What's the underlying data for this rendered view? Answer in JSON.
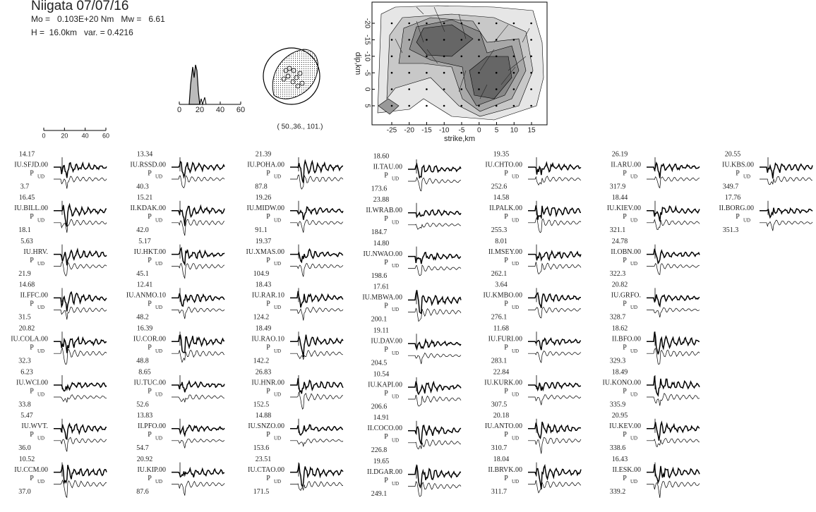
{
  "header": {
    "title": "Niigata 07/07/16",
    "moment_line": "Mo =   0.103E+20 Nm   Mw =   6.61",
    "depth_line": "H =  16.0km   var. = 0.4216"
  },
  "stf": {
    "ticks": [
      0,
      20,
      40,
      60
    ]
  },
  "time_scale": {
    "ticks": [
      0,
      20,
      40,
      60
    ]
  },
  "mechanism": {
    "label": "( 50.,36., 101.)"
  },
  "slip_map": {
    "xlabel": "strike,km",
    "ylabel": "dip,km",
    "xticks": [
      -25,
      -20,
      -15,
      -10,
      -5,
      0,
      5,
      10,
      15
    ],
    "yticks": [
      -20,
      -15,
      -10,
      -5,
      0,
      5
    ]
  },
  "stations": [
    [
      {
        "amp": "14.17",
        "name": "IU.SFJD.00",
        "phase": "P",
        "comp": "UD",
        "azimuth": "3.7"
      },
      {
        "amp": "16.45",
        "name": "IU.BILL.00",
        "phase": "P",
        "comp": "UD",
        "azimuth": "18.1"
      },
      {
        "amp": "5.63",
        "name": "IU.HRV.",
        "phase": "P",
        "comp": "UD",
        "azimuth": "21.9"
      },
      {
        "amp": "14.68",
        "name": "II.FFC.00",
        "phase": "P",
        "comp": "UD",
        "azimuth": "31.5"
      },
      {
        "amp": "20.82",
        "name": "IU.COLA.00",
        "phase": "P",
        "comp": "UD",
        "azimuth": "32.3"
      },
      {
        "amp": "6.23",
        "name": "IU.WCI.00",
        "phase": "P",
        "comp": "UD",
        "azimuth": "33.8"
      },
      {
        "amp": "5.47",
        "name": "IU.WVT.",
        "phase": "P",
        "comp": "UD",
        "azimuth": "36.0"
      },
      {
        "amp": "10.52",
        "name": "IU.CCM.00",
        "phase": "P",
        "comp": "UD",
        "azimuth": "37.0"
      }
    ],
    [
      {
        "amp": "13.34",
        "name": "IU.RSSD.00",
        "phase": "P",
        "comp": "UD",
        "azimuth": "40.3"
      },
      {
        "amp": "15.21",
        "name": "II.KDAK.00",
        "phase": "P",
        "comp": "UD",
        "azimuth": "42.0"
      },
      {
        "amp": "5.17",
        "name": "IU.HKT.00",
        "phase": "P",
        "comp": "UD",
        "azimuth": "45.1"
      },
      {
        "amp": "12.41",
        "name": "IU.ANMO.10",
        "phase": "P",
        "comp": "UD",
        "azimuth": "48.2"
      },
      {
        "amp": "16.39",
        "name": "IU.COR.00",
        "phase": "P",
        "comp": "UD",
        "azimuth": "48.8"
      },
      {
        "amp": "8.65",
        "name": "IU.TUC.00",
        "phase": "P",
        "comp": "UD",
        "azimuth": "52.6"
      },
      {
        "amp": "13.83",
        "name": "II.PFO.00",
        "phase": "P",
        "comp": "UD",
        "azimuth": "54.7"
      },
      {
        "amp": "20.92",
        "name": "IU.KIP.00",
        "phase": "P",
        "comp": "UD",
        "azimuth": "87.6"
      }
    ],
    [
      {
        "amp": "21.39",
        "name": "IU.POHA.00",
        "phase": "P",
        "comp": "UD",
        "azimuth": "87.8"
      },
      {
        "amp": "19.26",
        "name": "IU.MIDW.00",
        "phase": "P",
        "comp": "UD",
        "azimuth": "91.1"
      },
      {
        "amp": "19.37",
        "name": "IU.XMAS.00",
        "phase": "P",
        "comp": "UD",
        "azimuth": "104.9"
      },
      {
        "amp": "18.43",
        "name": "IU.RAR.10",
        "phase": "P",
        "comp": "UD",
        "azimuth": "124.2"
      },
      {
        "amp": "18.49",
        "name": "IU.RAO.10",
        "phase": "P",
        "comp": "UD",
        "azimuth": "142.2"
      },
      {
        "amp": "26.83",
        "name": "IU.HNR.00",
        "phase": "P",
        "comp": "UD",
        "azimuth": "152.5"
      },
      {
        "amp": "14.88",
        "name": "IU.SNZO.00",
        "phase": "P",
        "comp": "UD",
        "azimuth": "153.6"
      },
      {
        "amp": "23.51",
        "name": "IU.CTAO.00",
        "phase": "P",
        "comp": "UD",
        "azimuth": "171.5"
      }
    ],
    [
      {
        "amp": "18.60",
        "name": "II.TAU.00",
        "phase": "P",
        "comp": "UD",
        "azimuth": "173.6"
      },
      {
        "amp": "23.88",
        "name": "II.WRAB.00",
        "phase": "P",
        "comp": "UD",
        "azimuth": "184.7"
      },
      {
        "amp": "14.80",
        "name": "IU.NWAO.00",
        "phase": "P",
        "comp": "UD",
        "azimuth": "198.6"
      },
      {
        "amp": "17.61",
        "name": "IU.MBWA.00",
        "phase": "P",
        "comp": "UD",
        "azimuth": "200.1"
      },
      {
        "amp": "19.11",
        "name": "IU.DAV.00",
        "phase": "P",
        "comp": "UD",
        "azimuth": "204.5"
      },
      {
        "amp": "10.54",
        "name": "IU.KAPI.00",
        "phase": "P",
        "comp": "UD",
        "azimuth": "206.6"
      },
      {
        "amp": "14.91",
        "name": "II.COCO.00",
        "phase": "P",
        "comp": "UD",
        "azimuth": "226.8"
      },
      {
        "amp": "19.65",
        "name": "II.DGAR.00",
        "phase": "P",
        "comp": "UD",
        "azimuth": "249.1"
      }
    ],
    [
      {
        "amp": "19.35",
        "name": "IU.CHTO.00",
        "phase": "P",
        "comp": "UD",
        "azimuth": "252.6"
      },
      {
        "amp": "14.58",
        "name": "II.PALK.00",
        "phase": "P",
        "comp": "UD",
        "azimuth": "255.3"
      },
      {
        "amp": "8.01",
        "name": "II.MSEY.00",
        "phase": "P",
        "comp": "UD",
        "azimuth": "262.1"
      },
      {
        "amp": "3.64",
        "name": "IU.KMBO.00",
        "phase": "P",
        "comp": "UD",
        "azimuth": "276.1"
      },
      {
        "amp": "11.68",
        "name": "IU.FURI.00",
        "phase": "P",
        "comp": "UD",
        "azimuth": "283.1"
      },
      {
        "amp": "22.84",
        "name": "IU.KURK.00",
        "phase": "P",
        "comp": "UD",
        "azimuth": "307.5"
      },
      {
        "amp": "20.18",
        "name": "IU.ANTO.00",
        "phase": "P",
        "comp": "UD",
        "azimuth": "310.7"
      },
      {
        "amp": "18.04",
        "name": "II.BRVK.00",
        "phase": "P",
        "comp": "UD",
        "azimuth": "311.7"
      }
    ],
    [
      {
        "amp": "26.19",
        "name": "II.ARU.00",
        "phase": "P",
        "comp": "UD",
        "azimuth": "317.9"
      },
      {
        "amp": "18.44",
        "name": "IU.KIEV.00",
        "phase": "P",
        "comp": "UD",
        "azimuth": "321.1"
      },
      {
        "amp": "24.78",
        "name": "II.OBN.00",
        "phase": "P",
        "comp": "UD",
        "azimuth": "322.3"
      },
      {
        "amp": "20.82",
        "name": "IU.GRFO.",
        "phase": "P",
        "comp": "UD",
        "azimuth": "328.7"
      },
      {
        "amp": "18.62",
        "name": "II.BFO.00",
        "phase": "P",
        "comp": "UD",
        "azimuth": "329.3"
      },
      {
        "amp": "18.49",
        "name": "IU.KONO.00",
        "phase": "P",
        "comp": "UD",
        "azimuth": "335.9"
      },
      {
        "amp": "20.95",
        "name": "IU.KEV.00",
        "phase": "P",
        "comp": "UD",
        "azimuth": "338.6"
      },
      {
        "amp": "16.43",
        "name": "II.ESK.00",
        "phase": "P",
        "comp": "UD",
        "azimuth": "339.2"
      }
    ],
    [
      {
        "amp": "20.55",
        "name": "IU.KBS.00",
        "phase": "P",
        "comp": "UD",
        "azimuth": "349.7"
      },
      {
        "amp": "17.76",
        "name": "II.BORG.00",
        "phase": "P",
        "comp": "UD",
        "azimuth": "351.3"
      }
    ]
  ]
}
